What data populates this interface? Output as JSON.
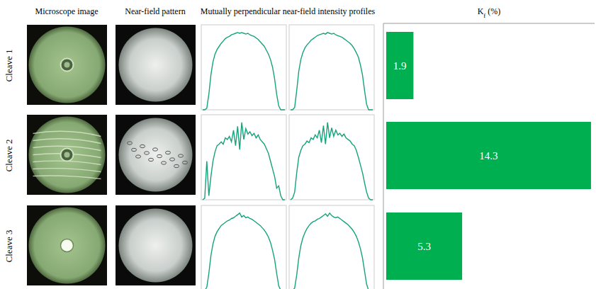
{
  "columns": [
    "Microscope image",
    "Near-field pattern",
    "Mutually perpendicular near-field intensity profiles"
  ],
  "profiles": [
    [
      [
        0,
        0,
        0.02,
        0.2,
        0.45,
        0.62,
        0.72,
        0.78,
        0.82,
        0.86,
        0.89,
        0.92,
        0.94,
        0.95,
        0.97,
        0.98,
        0.99,
        1.0,
        0.99,
        1.0,
        0.99,
        0.98,
        0.99,
        0.97,
        0.96,
        0.95,
        0.93,
        0.91,
        0.88,
        0.85,
        0.82,
        0.77,
        0.72,
        0.65,
        0.55,
        0.4,
        0.2,
        0.05,
        0,
        0,
        0
      ],
      [
        0,
        0,
        0.03,
        0.25,
        0.5,
        0.65,
        0.74,
        0.8,
        0.84,
        0.87,
        0.9,
        0.92,
        0.94,
        0.96,
        0.97,
        0.98,
        0.99,
        0.98,
        1.0,
        0.99,
        0.98,
        0.99,
        0.97,
        0.96,
        0.95,
        0.94,
        0.92,
        0.9,
        0.88,
        0.86,
        0.83,
        0.79,
        0.74,
        0.68,
        0.58,
        0.45,
        0.25,
        0.07,
        0,
        0,
        0
      ]
    ],
    [
      [
        0,
        0.02,
        0.5,
        0.05,
        0.3,
        0.5,
        0.62,
        0.7,
        0.72,
        0.75,
        0.72,
        0.8,
        0.78,
        0.82,
        0.75,
        0.9,
        0.7,
        0.95,
        0.65,
        1.0,
        0.78,
        0.92,
        0.85,
        0.88,
        0.83,
        0.86,
        0.8,
        0.84,
        0.78,
        0.75,
        0.72,
        0.66,
        0.6,
        0.5,
        0.4,
        0.3,
        0.15,
        0.18,
        0.05,
        0,
        0
      ],
      [
        0,
        0.02,
        0.1,
        0.35,
        0.55,
        0.64,
        0.7,
        0.72,
        0.76,
        0.74,
        0.8,
        0.78,
        0.84,
        0.8,
        0.9,
        0.74,
        0.96,
        0.72,
        1.0,
        0.8,
        0.93,
        0.82,
        0.9,
        0.84,
        0.86,
        0.82,
        0.85,
        0.8,
        0.78,
        0.76,
        0.72,
        0.7,
        0.64,
        0.55,
        0.45,
        0.35,
        0.22,
        0.1,
        0.02,
        0,
        0
      ]
    ],
    [
      [
        0,
        0,
        0.04,
        0.22,
        0.45,
        0.6,
        0.7,
        0.76,
        0.8,
        0.84,
        0.86,
        0.88,
        0.9,
        0.91,
        0.93,
        0.94,
        0.96,
        0.98,
        1.0,
        0.95,
        0.97,
        0.94,
        0.95,
        0.93,
        0.92,
        0.9,
        0.88,
        0.86,
        0.84,
        0.81,
        0.78,
        0.74,
        0.69,
        0.62,
        0.52,
        0.4,
        0.22,
        0.06,
        0,
        0,
        0
      ],
      [
        0,
        0,
        0.03,
        0.2,
        0.42,
        0.58,
        0.68,
        0.75,
        0.8,
        0.84,
        0.87,
        0.89,
        0.9,
        0.92,
        0.93,
        0.95,
        0.97,
        0.99,
        0.96,
        1.0,
        0.97,
        0.95,
        0.94,
        0.95,
        0.93,
        0.91,
        0.89,
        0.87,
        0.85,
        0.82,
        0.79,
        0.75,
        0.7,
        0.63,
        0.54,
        0.42,
        0.25,
        0.08,
        0,
        0,
        0
      ]
    ]
  ],
  "profile_ylim": [
    0,
    1.1
  ],
  "chart_data": {
    "type": "bar",
    "orientation": "horizontal",
    "title": "Kf (%)",
    "categories": [
      "Cleave 1",
      "Cleave 2",
      "Cleave 3"
    ],
    "values": [
      1.9,
      14.3,
      5.3
    ],
    "color": "#00b050",
    "xlim": [
      0,
      14.5
    ],
    "data_labels": true,
    "tick_labels": false,
    "grid": false
  }
}
